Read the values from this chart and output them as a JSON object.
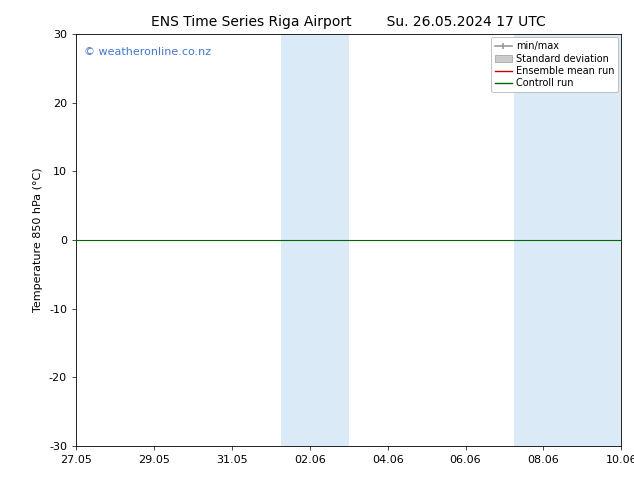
{
  "title_left": "ENS Time Series Riga Airport",
  "title_right": "Su. 26.05.2024 17 UTC",
  "ylabel": "Temperature 850 hPa (°C)",
  "ylim": [
    -30,
    30
  ],
  "yticks": [
    -30,
    -20,
    -10,
    0,
    10,
    20,
    30
  ],
  "xtick_labels": [
    "27.05",
    "29.05",
    "31.05",
    "02.06",
    "04.06",
    "06.06",
    "08.06",
    "10.06"
  ],
  "xtick_positions": [
    0,
    2,
    4,
    6,
    8,
    10,
    12,
    14
  ],
  "total_x_days": 14,
  "watermark": "© weatheronline.co.nz",
  "watermark_color": "#4477cc",
  "background_color": "#ffffff",
  "plot_bg_color": "#ffffff",
  "shaded_regions": [
    {
      "x_start": 5.25,
      "x_end": 7.0
    },
    {
      "x_start": 11.25,
      "x_end": 14.0
    }
  ],
  "shaded_color": "#daeaf7",
  "zero_line_color": "#006600",
  "zero_line_y": 0,
  "legend_entries": [
    {
      "label": "min/max",
      "color": "#aaaaaa"
    },
    {
      "label": "Standard deviation",
      "color": "#cccccc"
    },
    {
      "label": "Ensemble mean run",
      "color": "#cc0000"
    },
    {
      "label": "Controll run",
      "color": "#006600"
    }
  ],
  "title_fontsize": 10,
  "axis_fontsize": 8,
  "tick_fontsize": 8,
  "watermark_fontsize": 8
}
